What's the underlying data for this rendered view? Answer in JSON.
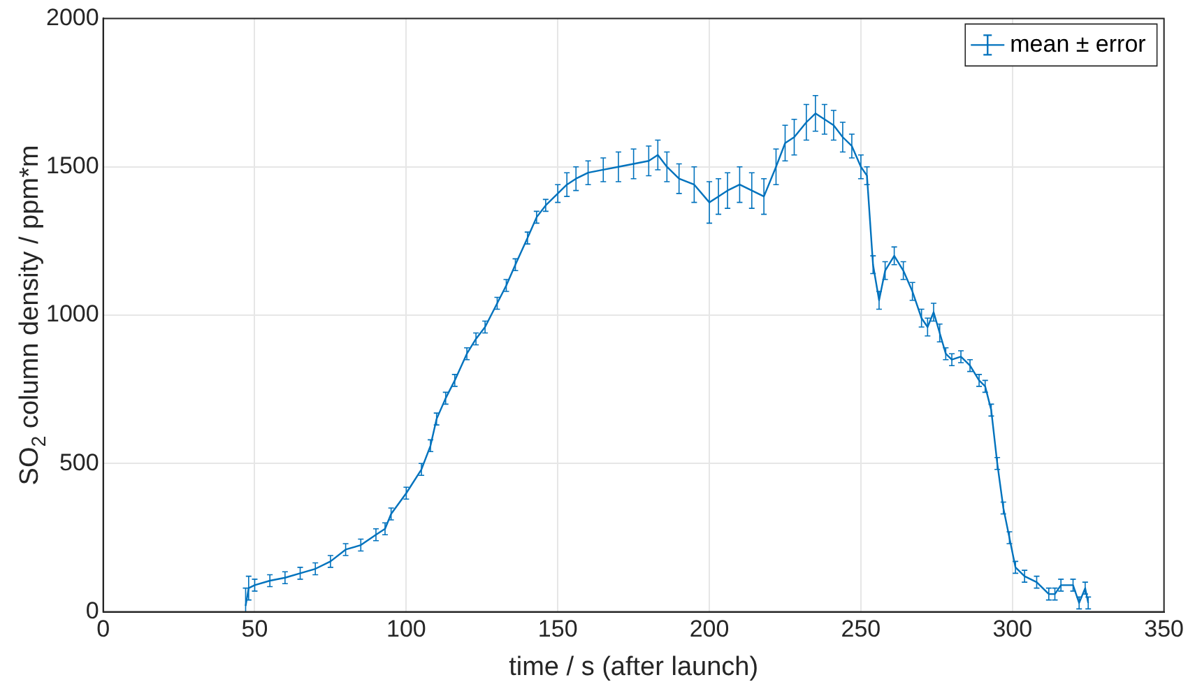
{
  "chart_data": {
    "type": "line",
    "xlabel": "time / s (after launch)",
    "ylabel": "SO$_{2}$ column density / ppm*m",
    "xlim": [
      0,
      350
    ],
    "xticks": [
      0,
      50,
      100,
      150,
      200,
      250,
      300,
      350
    ],
    "ylim": [
      0,
      2000
    ],
    "yticks": [
      0,
      500,
      1000,
      1500,
      2000
    ],
    "grid": true,
    "legend": "top right",
    "series": [
      {
        "name": "mean ± error",
        "color": "#0072bd",
        "x": [
          47,
          48,
          50,
          55,
          60,
          65,
          70,
          75,
          80,
          85,
          90,
          93,
          95,
          100,
          105,
          108,
          110,
          113,
          116,
          120,
          123,
          126,
          130,
          133,
          136,
          140,
          143,
          146,
          150,
          153,
          156,
          160,
          165,
          170,
          175,
          180,
          183,
          186,
          190,
          195,
          200,
          203,
          206,
          210,
          214,
          218,
          222,
          225,
          228,
          232,
          235,
          238,
          241,
          244,
          247,
          250,
          252,
          254,
          256,
          258,
          261,
          264,
          267,
          270,
          272,
          274,
          276,
          278,
          280,
          283,
          286,
          289,
          291,
          293,
          295,
          297,
          299,
          301,
          304,
          308,
          312,
          314,
          316,
          320,
          322,
          324,
          325
        ],
        "values": [
          20,
          80,
          90,
          105,
          115,
          130,
          145,
          170,
          210,
          225,
          260,
          280,
          330,
          400,
          480,
          560,
          650,
          720,
          780,
          870,
          920,
          960,
          1040,
          1100,
          1170,
          1260,
          1330,
          1370,
          1410,
          1440,
          1460,
          1480,
          1490,
          1500,
          1510,
          1520,
          1540,
          1500,
          1460,
          1440,
          1380,
          1400,
          1420,
          1440,
          1420,
          1400,
          1500,
          1580,
          1600,
          1650,
          1680,
          1660,
          1640,
          1600,
          1570,
          1500,
          1470,
          1170,
          1050,
          1150,
          1200,
          1150,
          1080,
          990,
          960,
          1010,
          940,
          870,
          850,
          860,
          830,
          780,
          760,
          680,
          500,
          350,
          250,
          150,
          120,
          100,
          60,
          60,
          90,
          90,
          30,
          80,
          30
        ],
        "errors": [
          60,
          40,
          20,
          20,
          20,
          20,
          20,
          20,
          20,
          20,
          20,
          20,
          20,
          20,
          20,
          20,
          20,
          20,
          20,
          20,
          20,
          20,
          20,
          20,
          20,
          20,
          20,
          20,
          30,
          40,
          40,
          40,
          40,
          50,
          50,
          50,
          50,
          50,
          50,
          60,
          70,
          60,
          60,
          60,
          60,
          60,
          60,
          60,
          60,
          60,
          60,
          50,
          50,
          50,
          40,
          40,
          30,
          30,
          30,
          30,
          30,
          30,
          30,
          30,
          30,
          30,
          30,
          20,
          20,
          20,
          20,
          20,
          20,
          20,
          20,
          20,
          20,
          20,
          20,
          20,
          20,
          20,
          20,
          20,
          20,
          20,
          20
        ]
      }
    ]
  }
}
